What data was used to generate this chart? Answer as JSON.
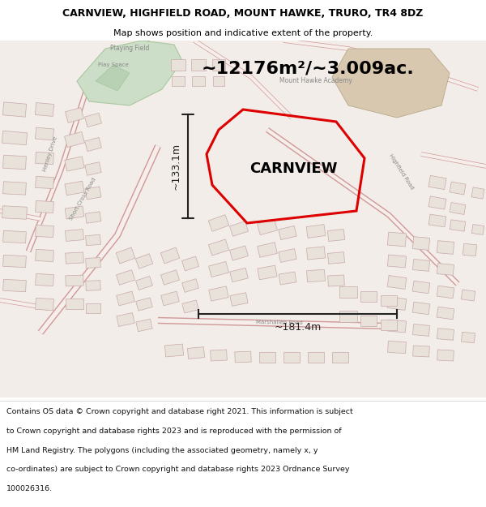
{
  "title": "CARNVIEW, HIGHFIELD ROAD, MOUNT HAWKE, TRURO, TR4 8DZ",
  "subtitle": "Map shows position and indicative extent of the property.",
  "area_text": "~12176m²/~3.009ac.",
  "property_label": "CARNVIEW",
  "dim_vertical": "~133.1m",
  "dim_horizontal": "~181.4m",
  "footer_lines": [
    "Contains OS data © Crown copyright and database right 2021. This information is subject",
    "to Crown copyright and database rights 2023 and is reproduced with the permission of",
    "HM Land Registry. The polygons (including the associated geometry, namely x, y",
    "co-ordinates) are subject to Crown copyright and database rights 2023 Ordnance Survey",
    "100026316."
  ],
  "map_bg": "#f2ede8",
  "header_bg": "#ffffff",
  "footer_bg": "#ffffff",
  "polygon_color": "#dd0000",
  "dim_line_color": "#222222",
  "building_fill": "#e8e2da",
  "building_edge": "#c8a8a8",
  "road_edge": "#d09898",
  "green_fill": "#cddec8",
  "green_edge": "#a8c8a0",
  "tan_fill": "#d8c8b0",
  "tan_edge": "#b8a888",
  "label_color": "#888888",
  "title_fontsize": 9,
  "subtitle_fontsize": 8,
  "area_fontsize": 16,
  "label_fontsize": 13,
  "footer_fontsize": 6.8
}
